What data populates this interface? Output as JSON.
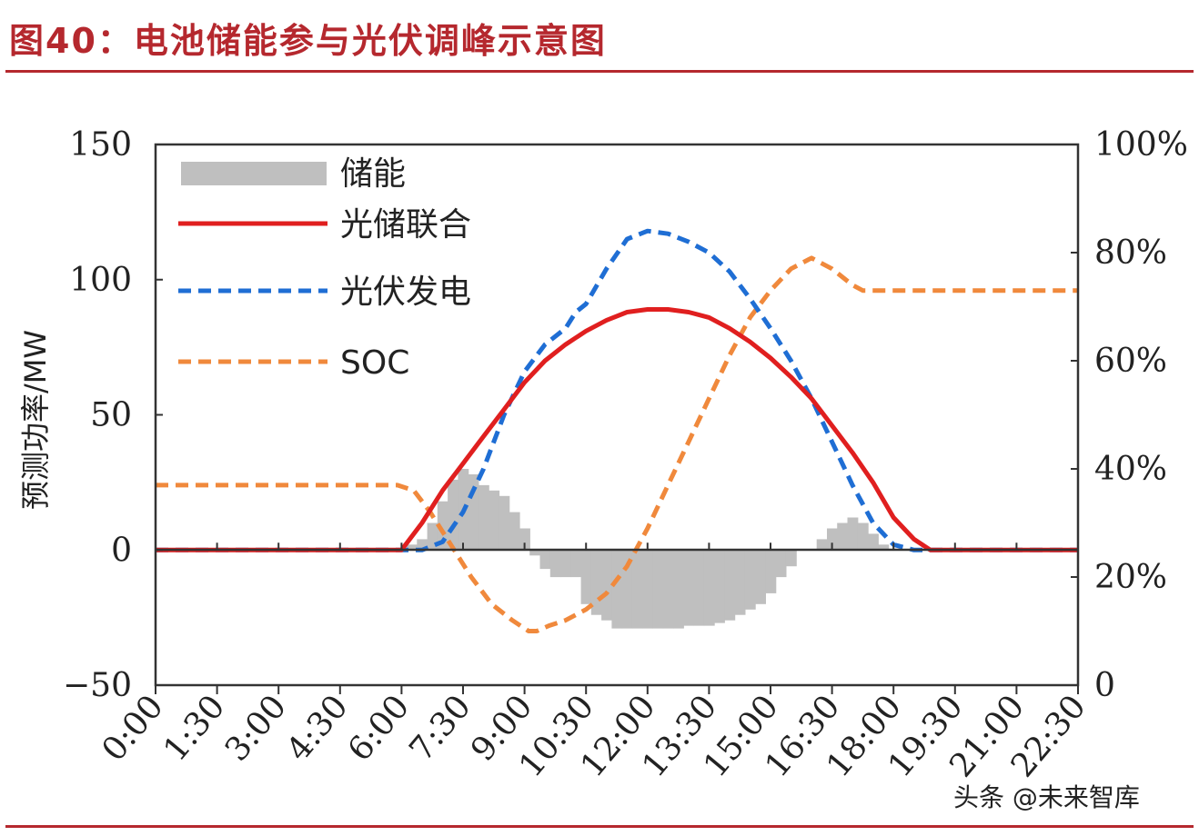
{
  "header": {
    "title": "图40：电池储能参与光伏调峰示意图",
    "watermark": "头条 @未来智库"
  },
  "chart_data": {
    "type": "line",
    "ylabel": "预测功率/MW",
    "ylim": [
      -50,
      150
    ],
    "yticks": [
      "150",
      "100",
      "50",
      "0",
      "−50"
    ],
    "y2lim": [
      0,
      100
    ],
    "y2ticks": [
      "100%",
      "80%",
      "60%",
      "40%",
      "20%",
      "0"
    ],
    "x_ticks": [
      "0:00",
      "1:30",
      "3:00",
      "4:30",
      "6:00",
      "7:30",
      "9:00",
      "10:30",
      "12:00",
      "13:30",
      "15:00",
      "16:30",
      "18:00",
      "19:30",
      "21:00",
      "22:30"
    ],
    "xlim": [
      0,
      22.5
    ],
    "legend_placement": "top-left",
    "series": [
      {
        "name": "储能",
        "kind": "bar",
        "color": "#bfbfbf",
        "x": [
          6.25,
          6.5,
          6.75,
          7.0,
          7.25,
          7.5,
          7.75,
          8.0,
          8.25,
          8.5,
          8.75,
          9.0,
          9.25,
          9.5,
          9.75,
          10.0,
          10.25,
          10.5,
          10.75,
          11.0,
          11.25,
          11.5,
          11.75,
          12.0,
          12.25,
          12.5,
          12.75,
          13.0,
          13.25,
          13.5,
          13.75,
          14.0,
          14.25,
          14.5,
          14.75,
          15.0,
          15.25,
          15.5,
          15.75,
          16.0,
          16.25,
          16.5,
          16.75,
          17.0,
          17.25,
          17.5,
          17.75,
          18.0,
          18.25,
          18.5,
          18.75
        ],
        "values": [
          2,
          4,
          10,
          18,
          26,
          30,
          28,
          24,
          22,
          20,
          14,
          8,
          -2,
          -7,
          -10,
          -10,
          -10,
          -20,
          -24,
          -26,
          -29,
          -29,
          -29,
          -29,
          -29,
          -29,
          -29,
          -28,
          -28,
          -28,
          -27,
          -26,
          -24,
          -22,
          -20,
          -16,
          -10,
          -6,
          0,
          0,
          4,
          8,
          10,
          12,
          10,
          6,
          2,
          0,
          0,
          0,
          0
        ]
      },
      {
        "name": "光储联合",
        "kind": "line",
        "color": "#e01f1f",
        "x": [
          0,
          5.75,
          6,
          6.5,
          7,
          7.5,
          8,
          8.5,
          9,
          9.5,
          10,
          10.5,
          11,
          11.5,
          12,
          12.5,
          13,
          13.5,
          14,
          14.5,
          15,
          15.5,
          16,
          16.5,
          17,
          17.5,
          18,
          18.5,
          18.9,
          19,
          22.5
        ],
        "values": [
          0,
          0,
          0,
          10,
          22,
          32,
          42,
          52,
          62,
          70,
          76,
          81,
          85,
          88,
          89,
          89,
          88,
          86,
          82,
          77,
          71,
          64,
          56,
          46,
          36,
          25,
          12,
          4,
          0,
          0,
          0
        ]
      },
      {
        "name": "光伏发电",
        "kind": "line",
        "color": "#1f6ed4",
        "x": [
          0,
          6.5,
          7,
          7.5,
          8,
          8.5,
          9,
          9.5,
          10,
          10.25,
          10.5,
          11,
          11.5,
          12,
          12.5,
          13,
          13.5,
          14,
          14.5,
          15,
          15.5,
          16,
          16.5,
          17,
          17.5,
          18,
          18.5,
          19,
          22.5
        ],
        "values": [
          0,
          0,
          3,
          14,
          30,
          50,
          66,
          76,
          82,
          88,
          91,
          104,
          115,
          118,
          117,
          114,
          110,
          103,
          93,
          82,
          70,
          56,
          40,
          24,
          10,
          2,
          0,
          0,
          0
        ]
      },
      {
        "name": "SOC",
        "kind": "line",
        "axis": "right",
        "unit": "%",
        "color": "#f0893c",
        "x": [
          0,
          5.9,
          6.3,
          6.7,
          7.2,
          7.7,
          8.2,
          8.7,
          9.1,
          9.3,
          9.6,
          10,
          10.5,
          11,
          11.5,
          12,
          12.5,
          13,
          13.5,
          14,
          14.5,
          15,
          15.5,
          16,
          16.5,
          17,
          17.25,
          17.5,
          17.8,
          18.1,
          18.4,
          18.7,
          19,
          22.5
        ],
        "values": [
          37,
          37,
          36,
          32,
          26,
          20,
          15,
          12,
          10,
          10,
          11,
          12,
          14,
          17,
          22,
          29,
          37,
          45,
          53,
          61,
          68,
          73,
          77,
          79,
          77,
          74,
          73,
          73,
          73,
          73,
          73,
          73,
          73,
          73
        ]
      }
    ]
  }
}
